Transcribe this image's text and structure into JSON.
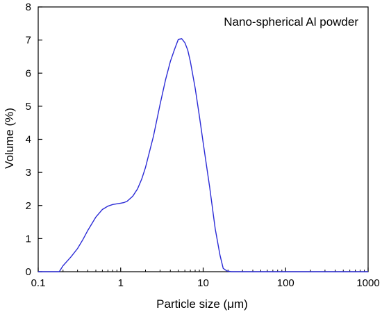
{
  "chart_data": {
    "type": "line",
    "title": "",
    "legend_text": "Nano-spherical Al powder",
    "legend_position": "top-right",
    "xlabel": "Particle size (μm)",
    "ylabel": "Volume (%)",
    "xscale": "log",
    "xlim": [
      0.1,
      1000
    ],
    "ylim": [
      0,
      8
    ],
    "grid": false,
    "line_color": "#2b2bd6",
    "x_ticks": [
      {
        "value": 0.1,
        "label": "0.1"
      },
      {
        "value": 1,
        "label": "1"
      },
      {
        "value": 10,
        "label": "10"
      },
      {
        "value": 100,
        "label": "100"
      },
      {
        "value": 1000,
        "label": "1000"
      }
    ],
    "y_ticks": [
      {
        "value": 0,
        "label": "0"
      },
      {
        "value": 1,
        "label": "1"
      },
      {
        "value": 2,
        "label": "2"
      },
      {
        "value": 3,
        "label": "3"
      },
      {
        "value": 4,
        "label": "4"
      },
      {
        "value": 5,
        "label": "5"
      },
      {
        "value": 6,
        "label": "6"
      },
      {
        "value": 7,
        "label": "7"
      },
      {
        "value": 8,
        "label": "8"
      }
    ],
    "series": [
      {
        "x": [
          0.1,
          0.18,
          0.2,
          0.25,
          0.3,
          0.35,
          0.4,
          0.5,
          0.6,
          0.7,
          0.8,
          0.9,
          1.0,
          1.1,
          1.2,
          1.4,
          1.6,
          1.8,
          2.0,
          2.5,
          3.0,
          3.5,
          4.0,
          4.5,
          5.0,
          5.5,
          6.0,
          6.5,
          7.0,
          8.0,
          9.0,
          10.0,
          12.0,
          14.0,
          16.0,
          17.5,
          19.5,
          22.0,
          30.0,
          50.0,
          100.0,
          200.0,
          500.0,
          1000.0
        ],
        "y": [
          0,
          0,
          0.18,
          0.45,
          0.7,
          0.98,
          1.25,
          1.65,
          1.88,
          1.98,
          2.03,
          2.05,
          2.07,
          2.09,
          2.13,
          2.28,
          2.5,
          2.8,
          3.15,
          4.1,
          5.05,
          5.8,
          6.35,
          6.72,
          7.02,
          7.04,
          6.92,
          6.7,
          6.35,
          5.55,
          4.7,
          3.9,
          2.55,
          1.3,
          0.5,
          0.1,
          0.02,
          0,
          0,
          0,
          0,
          0,
          0,
          0
        ]
      }
    ]
  }
}
